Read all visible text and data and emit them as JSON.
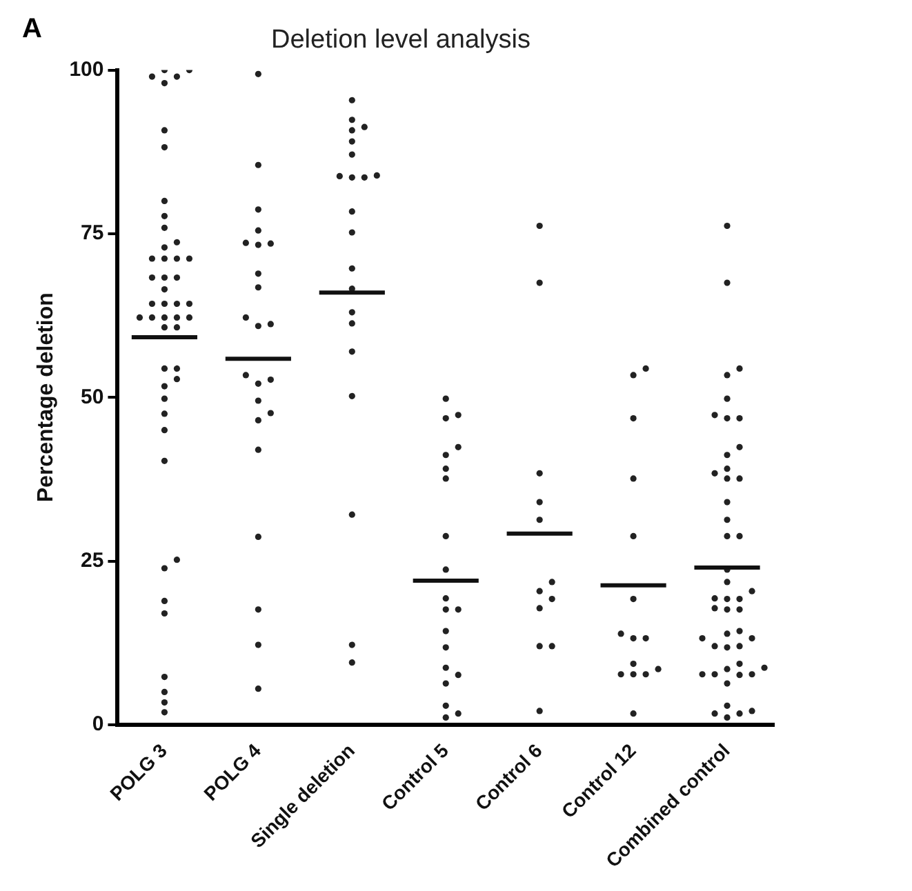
{
  "chart_data": {
    "type": "scatter",
    "title": "Deletion level analysis",
    "ylabel": "Percentage deletion",
    "annotations": [
      "A"
    ],
    "categories": [
      "POLG 3",
      "POLG 4",
      "Single deletion",
      "Control 5",
      "Control 6",
      "Control 12",
      "Combined control"
    ],
    "ylim": [
      0,
      100
    ],
    "yticks": [
      0,
      25,
      50,
      75,
      100
    ],
    "grid": false,
    "legend": false,
    "series": [
      {
        "type": "scatter",
        "marker": "circle",
        "color": "#222222",
        "x": [
          "POLG 3",
          "POLG 3",
          "POLG 3",
          "POLG 3",
          "POLG 3",
          "POLG 3",
          "POLG 3",
          "POLG 3",
          "POLG 3",
          "POLG 3",
          "POLG 3",
          "POLG 3",
          "POLG 3",
          "POLG 3",
          "POLG 3",
          "POLG 3",
          "POLG 3",
          "POLG 3",
          "POLG 3",
          "POLG 3",
          "POLG 3",
          "POLG 3",
          "POLG 3",
          "POLG 3",
          "POLG 3",
          "POLG 3",
          "POLG 3",
          "POLG 3",
          "POLG 3",
          "POLG 3",
          "POLG 3",
          "POLG 3",
          "POLG 3",
          "POLG 3",
          "POLG 3",
          "POLG 3",
          "POLG 3",
          "POLG 3",
          "POLG 3",
          "POLG 3",
          "POLG 3",
          "POLG 3",
          "POLG 3",
          "POLG 3",
          "POLG 3",
          "POLG 3",
          "POLG 3"
        ],
        "values": [
          100,
          99,
          98,
          99,
          100,
          90.8,
          88.2,
          80,
          77.7,
          75.9,
          73.7,
          72.9,
          71.2,
          71.2,
          71.2,
          71.2,
          68.3,
          68.3,
          68.3,
          66.5,
          64.3,
          64.3,
          64.3,
          64.3,
          62.2,
          62.2,
          62.2,
          62.2,
          62.2,
          60.7,
          60.7,
          54.4,
          54.4,
          52.8,
          51.7,
          49.8,
          47.5,
          45,
          40.3,
          25.2,
          23.9,
          18.9,
          17,
          7.3,
          5,
          3.4,
          1.9
        ]
      },
      {
        "type": "scatter",
        "marker": "circle",
        "color": "#222222",
        "x": [
          "POLG 4",
          "POLG 4",
          "POLG 4",
          "POLG 4",
          "POLG 4",
          "POLG 4",
          "POLG 4",
          "POLG 4",
          "POLG 4",
          "POLG 4",
          "POLG 4",
          "POLG 4",
          "POLG 4",
          "POLG 4",
          "POLG 4",
          "POLG 4",
          "POLG 4",
          "POLG 4",
          "POLG 4",
          "POLG 4",
          "POLG 4",
          "POLG 4",
          "POLG 4"
        ],
        "values": [
          99.4,
          85.5,
          78.7,
          75.5,
          73.6,
          73.5,
          73.3,
          68.9,
          66.8,
          62.2,
          60.9,
          61.2,
          52.7,
          52.1,
          53.4,
          49.5,
          47.6,
          46.5,
          42,
          28.7,
          17.6,
          12.2,
          5.5
        ]
      },
      {
        "type": "scatter",
        "marker": "circle",
        "color": "#222222",
        "x": [
          "Single deletion",
          "Single deletion",
          "Single deletion",
          "Single deletion",
          "Single deletion",
          "Single deletion",
          "Single deletion",
          "Single deletion",
          "Single deletion",
          "Single deletion",
          "Single deletion",
          "Single deletion",
          "Single deletion",
          "Single deletion",
          "Single deletion",
          "Single deletion",
          "Single deletion",
          "Single deletion",
          "Single deletion",
          "Single deletion",
          "Single deletion"
        ],
        "values": [
          95.4,
          92.4,
          90.8,
          91.3,
          89.1,
          87.1,
          83.8,
          83.6,
          83.6,
          83.9,
          78.4,
          75.2,
          69.7,
          66.6,
          63,
          61.3,
          57,
          50.2,
          32.1,
          12.2,
          9.5
        ]
      },
      {
        "type": "scatter",
        "marker": "circle",
        "color": "#222222",
        "x": [
          "Control 5",
          "Control 5",
          "Control 5",
          "Control 5",
          "Control 5",
          "Control 5",
          "Control 5",
          "Control 5",
          "Control 5",
          "Control 5",
          "Control 5",
          "Control 5",
          "Control 5",
          "Control 5",
          "Control 5",
          "Control 5",
          "Control 5",
          "Control 5",
          "Control 5",
          "Control 5"
        ],
        "values": [
          49.8,
          47.3,
          46.8,
          42.4,
          41.2,
          39.1,
          37.6,
          28.8,
          23.7,
          19.3,
          17.6,
          17.6,
          14.3,
          11.8,
          8.7,
          7.6,
          6.3,
          2.9,
          1.7,
          1.1
        ]
      },
      {
        "type": "scatter",
        "marker": "circle",
        "color": "#222222",
        "x": [
          "Control 6",
          "Control 6",
          "Control 6",
          "Control 6",
          "Control 6",
          "Control 6",
          "Control 6",
          "Control 6",
          "Control 6",
          "Control 6",
          "Control 6",
          "Control 6"
        ],
        "values": [
          76.2,
          67.5,
          38.4,
          34,
          31.3,
          21.8,
          20.4,
          19.2,
          17.8,
          12,
          12,
          2.1
        ]
      },
      {
        "type": "scatter",
        "marker": "circle",
        "color": "#222222",
        "x": [
          "Control 12",
          "Control 12",
          "Control 12",
          "Control 12",
          "Control 12",
          "Control 12",
          "Control 12",
          "Control 12",
          "Control 12",
          "Control 12",
          "Control 12",
          "Control 12",
          "Control 12",
          "Control 12",
          "Control 12"
        ],
        "values": [
          54.4,
          53.4,
          46.8,
          37.6,
          28.8,
          19.2,
          13.9,
          13.2,
          13.2,
          9.3,
          8.5,
          7.7,
          7.7,
          7.7,
          1.7
        ]
      },
      {
        "type": "scatter",
        "marker": "circle",
        "color": "#222222",
        "x": [
          "Combined control",
          "Combined control",
          "Combined control",
          "Combined control",
          "Combined control",
          "Combined control",
          "Combined control",
          "Combined control",
          "Combined control",
          "Combined control",
          "Combined control",
          "Combined control",
          "Combined control",
          "Combined control",
          "Combined control",
          "Combined control",
          "Combined control",
          "Combined control",
          "Combined control",
          "Combined control",
          "Combined control",
          "Combined control",
          "Combined control",
          "Combined control",
          "Combined control",
          "Combined control",
          "Combined control",
          "Combined control",
          "Combined control",
          "Combined control",
          "Combined control",
          "Combined control",
          "Combined control",
          "Combined control",
          "Combined control",
          "Combined control",
          "Combined control",
          "Combined control",
          "Combined control",
          "Combined control",
          "Combined control",
          "Combined control",
          "Combined control",
          "Combined control",
          "Combined control",
          "Combined control",
          "Combined control"
        ],
        "values": [
          76.2,
          67.5,
          54.4,
          53.4,
          49.8,
          47.3,
          46.8,
          46.8,
          42.4,
          41.2,
          39.1,
          38.4,
          37.6,
          37.6,
          34,
          31.3,
          28.8,
          28.8,
          23.7,
          21.8,
          20.4,
          19.3,
          19.2,
          19.2,
          17.8,
          17.6,
          17.6,
          14.3,
          13.9,
          13.2,
          13.2,
          12,
          12,
          11.8,
          9.3,
          8.7,
          8.5,
          7.7,
          7.7,
          7.7,
          7.6,
          6.3,
          2.9,
          2.1,
          1.7,
          1.7,
          1.1
        ]
      }
    ],
    "ref_lines": [
      {
        "axis": "y",
        "value": 59.2,
        "color": "#111111"
      },
      {
        "axis": "y",
        "value": 55.9,
        "color": "#111111"
      },
      {
        "axis": "y",
        "value": 66,
        "color": "#111111"
      },
      {
        "axis": "y",
        "value": 22,
        "color": "#111111"
      },
      {
        "axis": "y",
        "value": 29.2,
        "color": "#111111"
      },
      {
        "axis": "y",
        "value": 21.3,
        "color": "#111111"
      },
      {
        "axis": "y",
        "value": 24,
        "color": "#111111"
      }
    ]
  }
}
